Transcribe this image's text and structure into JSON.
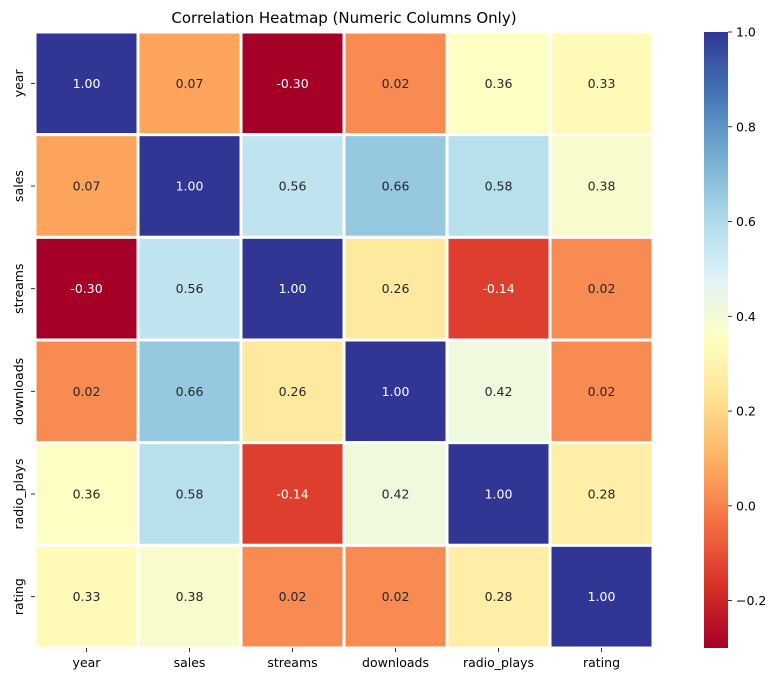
{
  "chart_data": {
    "type": "heatmap",
    "title": "Correlation Heatmap (Numeric Columns Only)",
    "x_labels": [
      "year",
      "sales",
      "streams",
      "downloads",
      "radio_plays",
      "rating"
    ],
    "y_labels": [
      "year",
      "sales",
      "streams",
      "downloads",
      "radio_plays",
      "rating"
    ],
    "values": [
      [
        1.0,
        0.07,
        -0.3,
        0.02,
        0.36,
        0.33
      ],
      [
        0.07,
        1.0,
        0.56,
        0.66,
        0.58,
        0.38
      ],
      [
        -0.3,
        0.56,
        1.0,
        0.26,
        -0.14,
        0.02
      ],
      [
        0.02,
        0.66,
        0.26,
        1.0,
        0.42,
        0.02
      ],
      [
        0.36,
        0.58,
        -0.14,
        0.42,
        1.0,
        0.28
      ],
      [
        0.33,
        0.38,
        0.02,
        0.02,
        0.28,
        1.0
      ]
    ],
    "annotation_format": "0.00",
    "colormap": "RdYlBu",
    "vmin": -0.3,
    "vmax": 1.0,
    "colorbar": {
      "ticks": [
        -0.2,
        0.0,
        0.2,
        0.4,
        0.6,
        0.8,
        1.0
      ],
      "tick_labels": [
        "−0.2",
        "0.0",
        "0.2",
        "0.4",
        "0.6",
        "0.8",
        "1.0"
      ],
      "placement": "right"
    },
    "cell_border_color": "#ffffff",
    "grid": false,
    "legend": "none"
  }
}
